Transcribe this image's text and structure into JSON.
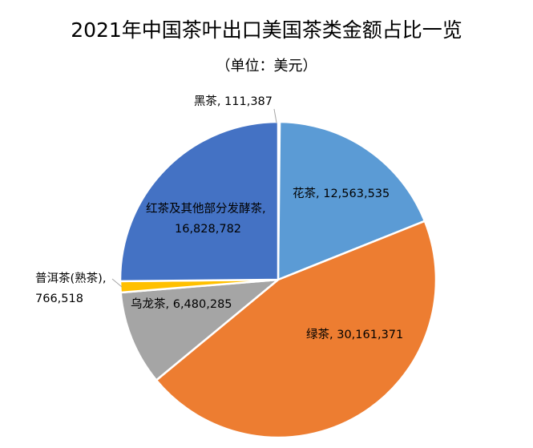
{
  "chart_data": {
    "type": "pie",
    "title": "2021年中国茶叶出口美国茶类金额占比一览",
    "subtitle": "（单位：美元）",
    "slices": [
      {
        "name": "黑茶",
        "value": 111387,
        "value_label": "111,387",
        "color": "#3a5f9c"
      },
      {
        "name": "花茶",
        "value": 12563535,
        "value_label": "12,563,535",
        "color": "#5b9bd5"
      },
      {
        "name": "绿茶",
        "value": 30161371,
        "value_label": "30,161,371",
        "color": "#ed7d31"
      },
      {
        "name": "乌龙茶",
        "value": 6480285,
        "value_label": "6,480,285",
        "color": "#a5a5a5"
      },
      {
        "name": "普洱茶(熟茶)",
        "value": 766518,
        "value_label": "766,518",
        "color": "#ffc000"
      },
      {
        "name": "红茶及其他部分发酵茶",
        "value": 16828782,
        "value_label": "16,828,782",
        "color": "#4472c4"
      }
    ]
  }
}
